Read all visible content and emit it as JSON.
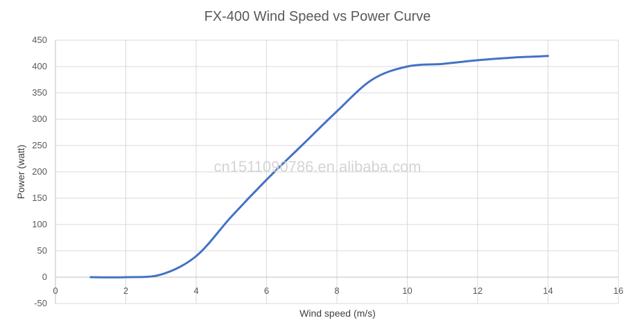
{
  "chart_data": {
    "type": "line",
    "title": "FX-400 Wind Speed vs Power Curve",
    "xlabel": "Wind speed (m/s)",
    "ylabel": "Power (watt)",
    "xlim": [
      0,
      16
    ],
    "ylim": [
      -50,
      450
    ],
    "x_ticks": [
      0,
      2,
      4,
      6,
      8,
      10,
      12,
      14,
      16
    ],
    "y_ticks": [
      -50,
      0,
      50,
      100,
      150,
      200,
      250,
      300,
      350,
      400,
      450
    ],
    "grid": true,
    "legend": "none",
    "series": [
      {
        "color": "#4472C4",
        "x": [
          1,
          2,
          3,
          4,
          5,
          6,
          7,
          8,
          9,
          10,
          11,
          12,
          13,
          14
        ],
        "y": [
          0,
          0,
          5,
          40,
          115,
          185,
          250,
          315,
          375,
          400,
          405,
          412,
          417,
          420
        ]
      }
    ]
  },
  "watermark": "cn1511090786.en.alibaba.com"
}
